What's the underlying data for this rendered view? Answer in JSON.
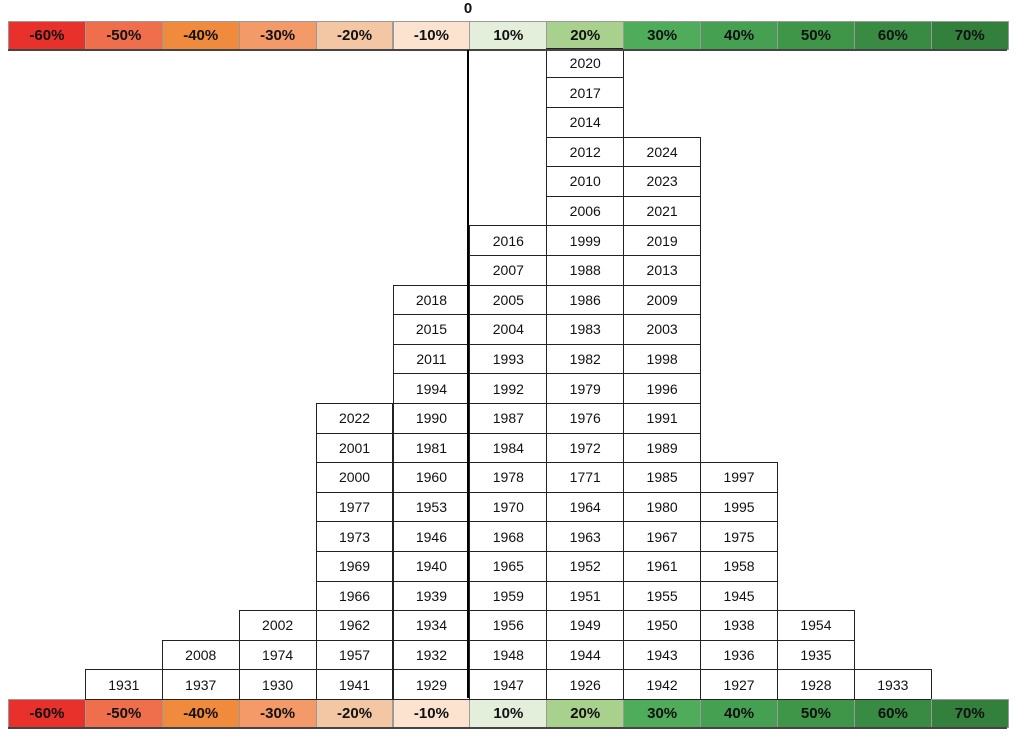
{
  "chart_data": {
    "type": "table",
    "zero_label": "0",
    "bins": [
      {
        "label": "-60%",
        "color": "#e8312a",
        "years": []
      },
      {
        "label": "-50%",
        "color": "#ef6f4c",
        "years": [
          "1931"
        ]
      },
      {
        "label": "-40%",
        "color": "#f08a3c",
        "years": [
          "2008",
          "1937"
        ]
      },
      {
        "label": "-30%",
        "color": "#f39a68",
        "years": [
          "2002",
          "1974",
          "1930"
        ]
      },
      {
        "label": "-20%",
        "color": "#f4c7a4",
        "years": [
          "2022",
          "2001",
          "2000",
          "1977",
          "1973",
          "1969",
          "1966",
          "1962",
          "1957",
          "1941"
        ]
      },
      {
        "label": "-10%",
        "color": "#fbe3d0",
        "years": [
          "2018",
          "2015",
          "2011",
          "1994",
          "1990",
          "1981",
          "1960",
          "1953",
          "1946",
          "1940",
          "1939",
          "1934",
          "1932",
          "1929"
        ]
      },
      {
        "label": "10%",
        "color": "#e3efdb",
        "years": [
          "2016",
          "2007",
          "2005",
          "2004",
          "1993",
          "1992",
          "1987",
          "1984",
          "1978",
          "1970",
          "1968",
          "1965",
          "1959",
          "1956",
          "1948",
          "1947"
        ]
      },
      {
        "label": "20%",
        "color": "#a9d18e",
        "years": [
          "2020",
          "2017",
          "2014",
          "2012",
          "2010",
          "2006",
          "1999",
          "1988",
          "1986",
          "1983",
          "1982",
          "1979",
          "1976",
          "1972",
          "1771",
          "1964",
          "1963",
          "1952",
          "1951",
          "1949",
          "1944",
          "1926"
        ]
      },
      {
        "label": "30%",
        "color": "#4eac5b",
        "years": [
          "2024",
          "2023",
          "2021",
          "2019",
          "2013",
          "2009",
          "2003",
          "1998",
          "1996",
          "1991",
          "1989",
          "1985",
          "1980",
          "1967",
          "1961",
          "1955",
          "1950",
          "1943",
          "1942"
        ]
      },
      {
        "label": "40%",
        "color": "#46a052",
        "years": [
          "1997",
          "1995",
          "1975",
          "1958",
          "1945",
          "1938",
          "1936",
          "1927"
        ]
      },
      {
        "label": "50%",
        "color": "#3f9649",
        "years": [
          "1954",
          "1935",
          "1928"
        ]
      },
      {
        "label": "60%",
        "color": "#398b43",
        "years": [
          "1933"
        ]
      },
      {
        "label": "70%",
        "color": "#33803d",
        "years": []
      }
    ]
  }
}
